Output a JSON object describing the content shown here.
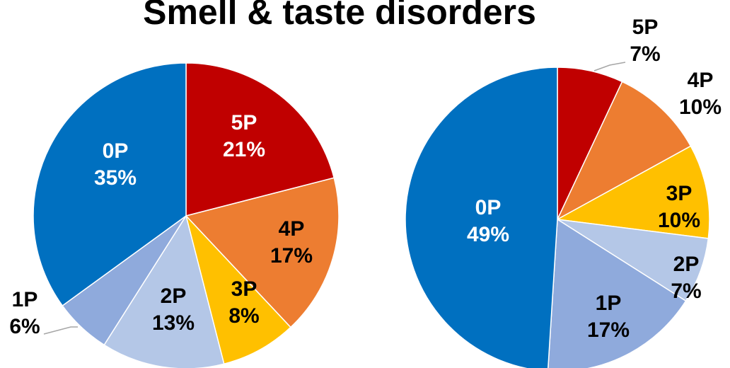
{
  "title": "Smell & taste disorders",
  "chart_data": [
    {
      "type": "pie",
      "categories": [
        "5P",
        "4P",
        "3P",
        "2P",
        "1P",
        "0P"
      ],
      "values": [
        21,
        17,
        8,
        13,
        6,
        35
      ],
      "value_labels": [
        "21%",
        "17%",
        "8%",
        "13%",
        "6%",
        "35%"
      ],
      "colors": [
        "#c00000",
        "#ed7d31",
        "#ffc000",
        "#b4c7e7",
        "#8faadc",
        "#0070c0"
      ]
    },
    {
      "type": "pie",
      "categories": [
        "5P",
        "4P",
        "3P",
        "2P",
        "1P",
        "0P"
      ],
      "values": [
        7,
        10,
        10,
        7,
        17,
        49
      ],
      "value_labels": [
        "7%",
        "10%",
        "10%",
        "7%",
        "17%",
        "49%"
      ],
      "colors": [
        "#c00000",
        "#ed7d31",
        "#ffc000",
        "#b4c7e7",
        "#8faadc",
        "#0070c0"
      ]
    }
  ]
}
